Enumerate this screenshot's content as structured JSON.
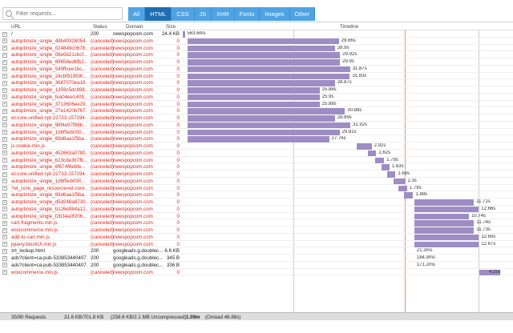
{
  "search": {
    "placeholder": "Filter requests..."
  },
  "filters": [
    {
      "label": "All",
      "active": false
    },
    {
      "label": "HTML",
      "active": true
    },
    {
      "label": "CSS",
      "active": false
    },
    {
      "label": "JS",
      "active": false
    },
    {
      "label": "XHR",
      "active": false
    },
    {
      "label": "Fonts",
      "active": false
    },
    {
      "label": "Images",
      "active": false
    },
    {
      "label": "Other",
      "active": false
    }
  ],
  "columns": {
    "url": "URL",
    "status": "Status",
    "domain": "Domain",
    "size": "Size",
    "timeline": "Timeline"
  },
  "rows": [
    {
      "url": "/",
      "status": "200",
      "domain": "newspopcom.com",
      "size": "24.4 KB",
      "time": "563.6ms",
      "canceled": false,
      "start": 0,
      "dur": 0.4
    },
    {
      "url": "autoptimize_single_48b49328054...",
      "status": "(canceled)",
      "domain": "newspopcom.com",
      "size": "0",
      "time": "29.66s",
      "canceled": true,
      "start": 1.0,
      "dur": 29.66
    },
    {
      "url": "autoptimize_single_024849c0678...",
      "status": "(canceled)",
      "domain": "newspopcom.com",
      "size": "0",
      "time": "28.9s",
      "canceled": true,
      "start": 1.0,
      "dur": 28.9
    },
    {
      "url": "autoptimize_single_08e5b21cbcf...",
      "status": "(canceled)",
      "domain": "newspopcom.com",
      "size": "0",
      "time": "29.92s",
      "canceled": true,
      "start": 1.0,
      "dur": 29.92
    },
    {
      "url": "autoptimize_single_89656ed6fb2...",
      "status": "(canceled)",
      "domain": "newspopcom.com",
      "size": "0",
      "time": "29.9s",
      "canceled": true,
      "start": 1.0,
      "dur": 29.9
    },
    {
      "url": "autoptimize_single_549ffcee1bc...",
      "status": "(canceled)",
      "domain": "newspopcom.com",
      "size": "0",
      "time": "31.87s",
      "canceled": true,
      "start": 1.0,
      "dur": 31.87
    },
    {
      "url": "autoptimize_single_24cbf91959f...",
      "status": "(canceled)",
      "domain": "newspopcom.com",
      "size": "0",
      "time": "31.83s",
      "canceled": true,
      "start": 1.0,
      "dur": 31.83
    },
    {
      "url": "autoptimize_single_3667070ea16...",
      "status": "(canceled)",
      "domain": "newspopcom.com",
      "size": "0",
      "time": "28.87s",
      "canceled": true,
      "start": 1.0,
      "dur": 28.87
    },
    {
      "url": "autoptimize_single_1359c5dc898...",
      "status": "(canceled)",
      "domain": "newspopcom.com",
      "size": "0",
      "time": "25.88s",
      "canceled": true,
      "start": 1.0,
      "dur": 25.88
    },
    {
      "url": "autoptimize_single_fea04ee1409...",
      "status": "(canceled)",
      "domain": "newspopcom.com",
      "size": "0",
      "time": "25.9s",
      "canceled": true,
      "start": 1.0,
      "dur": 25.9
    },
    {
      "url": "autoptimize_single_3713606ee29...",
      "status": "(canceled)",
      "domain": "newspopcom.com",
      "size": "0",
      "time": "25.88s",
      "canceled": true,
      "start": 1.0,
      "dur": 25.88
    },
    {
      "url": "autoptimize_single_27e1420b767...",
      "status": "(canceled)",
      "domain": "newspopcom.com",
      "size": "0",
      "time": "30.88s",
      "canceled": true,
      "start": 1.0,
      "dur": 30.88
    },
    {
      "url": "et-core-unified-cpt-22733-157294...",
      "status": "(canceled)",
      "domain": "newspopcom.com",
      "size": "0",
      "time": "28.89s",
      "canceled": true,
      "start": 1.0,
      "dur": 28.89
    },
    {
      "url": "autoptimize_single_98f4e97f86b...",
      "status": "(canceled)",
      "domain": "newspopcom.com",
      "size": "0",
      "time": "31.92s",
      "canceled": true,
      "start": 1.0,
      "dur": 31.92
    },
    {
      "url": "autoptimize_single_1d6f5eb000...",
      "status": "(canceled)",
      "domain": "newspopcom.com",
      "size": "0",
      "time": "29.81s",
      "canceled": true,
      "start": 1.0,
      "dur": 29.81
    },
    {
      "url": "autoptimize_single_69d6aa1f5ba...",
      "status": "(canceled)",
      "domain": "newspopcom.com",
      "size": "0",
      "time": "27.76s",
      "canceled": true,
      "start": 1.0,
      "dur": 27.76
    },
    {
      "url": "js.cookie.min.js",
      "status": "(canceled)",
      "domain": "newspopcom.com",
      "size": "0",
      "time": "2.92s",
      "canceled": true,
      "start": 34.2,
      "dur": 2.92
    },
    {
      "url": "autoptimize_single_452663a0780...",
      "status": "(canceled)",
      "domain": "newspopcom.com",
      "size": "0",
      "time": "1.62s",
      "canceled": true,
      "start": 36.4,
      "dur": 1.62
    },
    {
      "url": "autoptimize_single_b23cde3b7fb...",
      "status": "(canceled)",
      "domain": "newspopcom.com",
      "size": "0",
      "time": "1.78s",
      "canceled": true,
      "start": 37.8,
      "dur": 1.78
    },
    {
      "url": "autoptimize_single_6f674f8ebfe...",
      "status": "(canceled)",
      "domain": "newspopcom.com",
      "size": "0",
      "time": "1.63s",
      "canceled": true,
      "start": 39.0,
      "dur": 1.63
    },
    {
      "url": "et-core-unified-cpt-22733-157294...",
      "status": "(canceled)",
      "domain": "newspopcom.com",
      "size": "0",
      "time": "1.69s",
      "canceled": true,
      "start": 40.1,
      "dur": 1.69
    },
    {
      "url": "autoptimize_single_1d6f5eb000...",
      "status": "(canceled)",
      "domain": "newspopcom.com",
      "size": "0",
      "time": "2.3s",
      "canceled": true,
      "start": 41.4,
      "dur": 2.3
    },
    {
      "url": "?et_core_page_resource=et-core...",
      "status": "(canceled)",
      "domain": "newspopcom.com",
      "size": "0",
      "time": "1.79s",
      "canceled": true,
      "start": 42.3,
      "dur": 1.79
    },
    {
      "url": "autoptimize_single_69d6aa1f5ba...",
      "status": "(canceled)",
      "domain": "newspopcom.com",
      "size": "0",
      "time": "1.88s",
      "canceled": true,
      "start": 43.4,
      "dur": 1.88
    },
    {
      "url": "autoptimize_single_d5d248a8730...",
      "status": "(canceled)",
      "domain": "newspopcom.com",
      "size": "0",
      "time": "11.71s",
      "canceled": true,
      "start": 45.5,
      "dur": 11.71
    },
    {
      "url": "autoptimize_single_b126e984a12...",
      "status": "(canceled)",
      "domain": "newspopcom.com",
      "size": "0",
      "time": "12.66s",
      "canceled": true,
      "start": 45.5,
      "dur": 12.66
    },
    {
      "url": "autoptimize_single_f2b34a0f206...",
      "status": "(canceled)",
      "domain": "newspopcom.com",
      "size": "0",
      "time": "10.74s",
      "canceled": true,
      "start": 45.5,
      "dur": 10.74
    },
    {
      "url": "cart-fragments.min.js",
      "status": "(canceled)",
      "domain": "newspopcom.com",
      "size": "0",
      "time": "11.74s",
      "canceled": true,
      "start": 45.5,
      "dur": 11.74
    },
    {
      "url": "woocommerce.min.js",
      "status": "(canceled)",
      "domain": "newspopcom.com",
      "size": "0",
      "time": "11.73s",
      "canceled": true,
      "start": 45.5,
      "dur": 11.73
    },
    {
      "url": "add-to-cart.min.js",
      "status": "(canceled)",
      "domain": "newspopcom.com",
      "size": "0",
      "time": "12.69s",
      "canceled": true,
      "start": 45.5,
      "dur": 12.69
    },
    {
      "url": "jquery.blockUI.min.js",
      "status": "(canceled)",
      "domain": "newspopcom.com",
      "size": "0",
      "time": "12.67s",
      "canceled": true,
      "start": 45.5,
      "dur": 12.67
    },
    {
      "url": "zrt_lookup.html",
      "status": "200",
      "domain": "googleads.g.doublec...",
      "size": "6.6 KB",
      "time": "21.3ms",
      "canceled": false,
      "start": 45.5,
      "dur": 0
    },
    {
      "url": "ads?client=ca-pub-533853440407...",
      "status": "200",
      "domain": "googleads.g.doublec...",
      "size": "345 B",
      "time": "184.9ms",
      "canceled": false,
      "start": 45.5,
      "dur": 0
    },
    {
      "url": "ads?client=ca-pub-533853440407...",
      "status": "200",
      "domain": "googleads.g.doublec...",
      "size": "336 B",
      "time": "171.2ms",
      "canceled": false,
      "start": 45.5,
      "dur": 0
    },
    {
      "url": "woocommerce.min.js",
      "status": "(canceled)",
      "domain": "newspopcom.com",
      "size": "0",
      "time": "4.25s",
      "canceled": true,
      "start": 58.2,
      "dur": 4.25
    }
  ],
  "footer": {
    "requests": "35/90 Requests",
    "transferred": "31.6 KB/701.8 KB",
    "uncompressed": "(258.6 KB/2.1 MB Uncompressed)",
    "onload": "1.09m",
    "onload_detail": "(Onload 46.88s)"
  },
  "colors": {
    "bar": "#9e8dc4",
    "accent": "#4fa3e3",
    "active": "#1e6eb5",
    "canceled": "#e0241b"
  },
  "timeline_max_s": 63
}
